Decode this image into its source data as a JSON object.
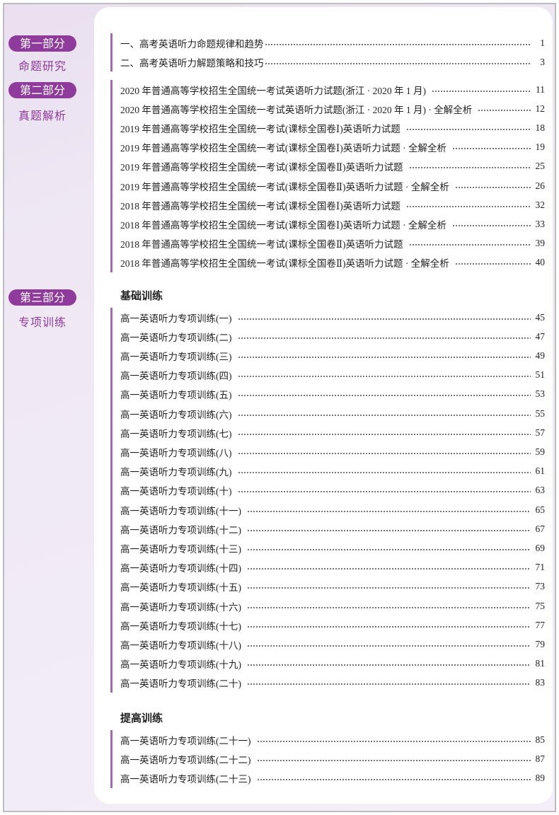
{
  "sections": [
    {
      "badge": "第一部分",
      "subtitle": "命题研究",
      "groups": [
        {
          "entries": [
            {
              "title": "一、高考英语听力命题规律和趋势",
              "page": 1
            },
            {
              "title": "二、高考英语听力解题策略和技巧",
              "page": 3
            }
          ]
        }
      ]
    },
    {
      "badge": "第二部分",
      "subtitle": "真题解析",
      "groups": [
        {
          "entries": [
            {
              "title": "2020 年普通高等学校招生全国统一考试英语听力试题(浙江 · 2020 年 1 月)",
              "page": 11
            },
            {
              "title": "2020 年普通高等学校招生全国统一考试英语听力试题(浙江 · 2020 年 1 月) · 全解全析",
              "page": 12
            },
            {
              "title": "2019 年普通高等学校招生全国统一考试(课标全国卷Ⅰ)英语听力试题",
              "page": 18
            },
            {
              "title": "2019 年普通高等学校招生全国统一考试(课标全国卷Ⅰ)英语听力试题 · 全解全析",
              "page": 19
            },
            {
              "title": "2019 年普通高等学校招生全国统一考试(课标全国卷Ⅱ)英语听力试题",
              "page": 25
            },
            {
              "title": "2019 年普通高等学校招生全国统一考试(课标全国卷Ⅱ)英语听力试题 · 全解全析",
              "page": 26
            },
            {
              "title": "2018 年普通高等学校招生全国统一考试(课标全国卷Ⅰ)英语听力试题",
              "page": 32
            },
            {
              "title": "2018 年普通高等学校招生全国统一考试(课标全国卷Ⅰ)英语听力试题 · 全解全析",
              "page": 33
            },
            {
              "title": "2018 年普通高等学校招生全国统一考试(课标全国卷Ⅱ)英语听力试题",
              "page": 39
            },
            {
              "title": "2018 年普通高等学校招生全国统一考试(课标全国卷Ⅱ)英语听力试题 · 全解全析",
              "page": 40
            }
          ]
        }
      ]
    },
    {
      "badge": "第三部分",
      "subtitle": "专项训练",
      "groups": [
        {
          "heading": "基础训练",
          "entries": [
            {
              "title": "高一英语听力专项训练(一)",
              "page": 45
            },
            {
              "title": "高一英语听力专项训练(二)",
              "page": 47
            },
            {
              "title": "高一英语听力专项训练(三)",
              "page": 49
            },
            {
              "title": "高一英语听力专项训练(四)",
              "page": 51
            },
            {
              "title": "高一英语听力专项训练(五)",
              "page": 53
            },
            {
              "title": "高一英语听力专项训练(六)",
              "page": 55
            },
            {
              "title": "高一英语听力专项训练(七)",
              "page": 57
            },
            {
              "title": "高一英语听力专项训练(八)",
              "page": 59
            },
            {
              "title": "高一英语听力专项训练(九)",
              "page": 61
            },
            {
              "title": "高一英语听力专项训练(十)",
              "page": 63
            },
            {
              "title": "高一英语听力专项训练(十一)",
              "page": 65
            },
            {
              "title": "高一英语听力专项训练(十二)",
              "page": 67
            },
            {
              "title": "高一英语听力专项训练(十三)",
              "page": 69
            },
            {
              "title": "高一英语听力专项训练(十四)",
              "page": 71
            },
            {
              "title": "高一英语听力专项训练(十五)",
              "page": 73
            },
            {
              "title": "高一英语听力专项训练(十六)",
              "page": 75
            },
            {
              "title": "高一英语听力专项训练(十七)",
              "page": 77
            },
            {
              "title": "高一英语听力专项训练(十八)",
              "page": 79
            },
            {
              "title": "高一英语听力专项训练(十九)",
              "page": 81
            },
            {
              "title": "高一英语听力专项训练(二十)",
              "page": 83
            }
          ]
        },
        {
          "heading": "提高训练",
          "entries": [
            {
              "title": "高一英语听力专项训练(二十一)",
              "page": 85
            },
            {
              "title": "高一英语听力专项训练(二十二)",
              "page": 87
            },
            {
              "title": "高一英语听力专项训练(二十三)",
              "page": 89
            }
          ]
        }
      ]
    }
  ]
}
